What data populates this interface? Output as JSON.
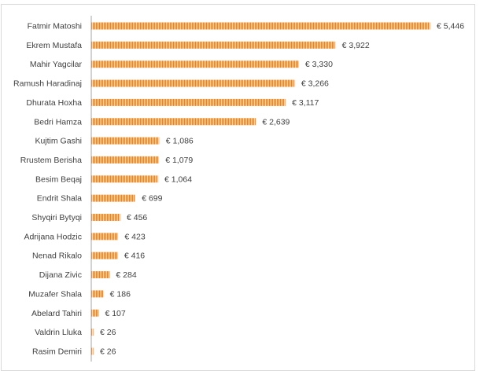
{
  "chart_data": {
    "type": "bar",
    "orientation": "horizontal",
    "categories": [
      "Fatmir Matoshi",
      "Ekrem Mustafa",
      "Mahir Yagcilar",
      "Ramush Haradinaj",
      "Dhurata Hoxha",
      "Bedri Hamza",
      "Kujtim Gashi",
      "Rrustem Berisha",
      "Besim Beqaj",
      "Endrit Shala",
      "Shyqiri Bytyqi",
      "Adrijana Hodzic",
      "Nenad Rikalo",
      "Dijana Zivic",
      "Muzafer Shala",
      "Abelard Tahiri",
      "Valdrin Lluka",
      "Rasim Demiri"
    ],
    "values": [
      5446,
      3922,
      3330,
      3266,
      3117,
      2639,
      1086,
      1079,
      1064,
      699,
      456,
      423,
      416,
      284,
      186,
      107,
      26,
      26
    ],
    "value_labels": [
      "€ 5,446",
      "€ 3,922",
      "€ 3,330",
      "€ 3,266",
      "€ 3,117",
      "€ 2,639",
      "€ 1,086",
      "€ 1,079",
      "€ 1,064",
      "€ 699",
      "€ 456",
      "€ 423",
      "€ 416",
      "€ 284",
      "€ 186",
      "€ 107",
      "€ 26",
      "€ 26"
    ],
    "xlim": [
      0,
      5446
    ],
    "grid": false,
    "legend": "none",
    "bar_color": "#ed7d31",
    "bar_pattern": "vertical-hatch",
    "axis_color": "#a6a6a6",
    "text_color": "#404040"
  }
}
